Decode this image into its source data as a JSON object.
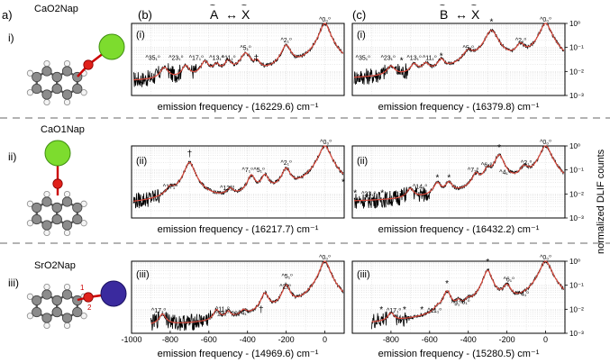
{
  "figure": {
    "labels": {
      "panel_a": "a)",
      "panel_b": "(b)",
      "panel_c": "(c)",
      "row_i": "i)",
      "row_ii": "ii)",
      "row_iii": "iii)",
      "sub_i": "(i)",
      "sub_ii": "(ii)",
      "sub_iii": "(iii)"
    },
    "transitions": {
      "b": {
        "upper": "A",
        "lower": "X",
        "arrow": "↔"
      },
      "c": {
        "upper": "B",
        "lower": "X",
        "arrow": "↔"
      }
    },
    "molecules": [
      {
        "name": "CaO2Nap",
        "metal_color": "#7ddc2e",
        "metal_edge": "#3f8f10"
      },
      {
        "name": "CaO1Nap",
        "metal_color": "#7ddc2e",
        "metal_edge": "#3f8f10"
      },
      {
        "name": "SrO2Nap",
        "metal_color": "#3a2a9e",
        "metal_edge": "#1a1060"
      }
    ],
    "sro2nap_site_labels": [
      "1",
      "2"
    ],
    "right_axis_label": "normalized DLIF counts",
    "colors": {
      "data": "#000000",
      "fit": "#d9483b",
      "grid": "#c8c8c8",
      "divider": "#999999"
    }
  },
  "chart_data": [
    {
      "id": "b-i",
      "type": "line",
      "xlim": [
        -1000,
        100
      ],
      "ylim": [
        0.001,
        1
      ],
      "yscale": "log",
      "xlabel": "emission frequency - (16229.6) cm⁻¹",
      "peaks": [
        {
          "x": 0,
          "h": 1.0,
          "w": 22
        },
        {
          "x": -200,
          "h": 0.11,
          "w": 22
        },
        {
          "x": -410,
          "h": 0.05,
          "w": 25
        },
        {
          "x": -500,
          "h": 0.02,
          "w": 18
        },
        {
          "x": -560,
          "h": 0.012,
          "w": 18
        },
        {
          "x": -620,
          "h": 0.02,
          "w": 20
        },
        {
          "x": -720,
          "h": 0.012,
          "w": 18
        },
        {
          "x": -830,
          "h": 0.01,
          "w": 20
        },
        {
          "x": -350,
          "h": 0.015,
          "w": 15
        }
      ],
      "baseline": 0.0035,
      "annotations": [
        {
          "x": 0,
          "y": 1.0,
          "text": "^0₀⁰"
        },
        {
          "x": -200,
          "y": 0.14,
          "text": "^2₁⁰"
        },
        {
          "x": -410,
          "y": 0.065,
          "text": "^5₁⁰"
        },
        {
          "x": -355,
          "y": 0.022,
          "text": "†"
        },
        {
          "x": -498,
          "y": 0.025,
          "text": "^11₁⁰"
        },
        {
          "x": -560,
          "y": 0.025,
          "text": "^13₁⁰"
        },
        {
          "x": -665,
          "y": 0.025,
          "text": "^17₁⁰"
        },
        {
          "x": -770,
          "y": 0.025,
          "text": "^23₁⁰"
        },
        {
          "x": -890,
          "y": 0.025,
          "text": "^35₁⁰"
        }
      ]
    },
    {
      "id": "c-i",
      "type": "line",
      "xlim": [
        -1000,
        100
      ],
      "ylim": [
        0.001,
        1
      ],
      "yscale": "log",
      "xlabel": "emission frequency - (16379.8) cm⁻¹",
      "peaks": [
        {
          "x": 0,
          "h": 1.0,
          "w": 25
        },
        {
          "x": -130,
          "h": 0.1,
          "w": 22
        },
        {
          "x": -280,
          "h": 0.5,
          "w": 28
        },
        {
          "x": -400,
          "h": 0.05,
          "w": 25
        },
        {
          "x": -540,
          "h": 0.02,
          "w": 18
        },
        {
          "x": -620,
          "h": 0.012,
          "w": 18
        },
        {
          "x": -680,
          "h": 0.012,
          "w": 18
        },
        {
          "x": -800,
          "h": 0.01,
          "w": 20
        }
      ],
      "baseline": 0.004,
      "annotations": [
        {
          "x": 0,
          "y": 1.0,
          "text": "^0₀⁰"
        },
        {
          "x": -128,
          "y": 0.14,
          "text": "^2₁⁰"
        },
        {
          "x": -280,
          "y": 0.75,
          "text": "*"
        },
        {
          "x": -400,
          "y": 0.065,
          "text": "^5₁⁰"
        },
        {
          "x": -540,
          "y": 0.028,
          "text": "*"
        },
        {
          "x": -600,
          "y": 0.025,
          "text": "^11₁⁰"
        },
        {
          "x": -680,
          "y": 0.025,
          "text": "^13₁⁰"
        },
        {
          "x": -745,
          "y": 0.018,
          "text": "*"
        },
        {
          "x": -815,
          "y": 0.025,
          "text": "^23₁⁰"
        },
        {
          "x": -945,
          "y": 0.025,
          "text": "^35₁⁰"
        }
      ]
    },
    {
      "id": "b-ii",
      "type": "line",
      "xlim": [
        -1000,
        100
      ],
      "ylim": [
        0.001,
        1
      ],
      "yscale": "log",
      "xlabel": "emission frequency - (16217.7) cm⁻¹",
      "peaks": [
        {
          "x": 0,
          "h": 1.0,
          "w": 25
        },
        {
          "x": -200,
          "h": 0.1,
          "w": 20
        },
        {
          "x": -310,
          "h": 0.05,
          "w": 18
        },
        {
          "x": -380,
          "h": 0.05,
          "w": 18
        },
        {
          "x": -700,
          "h": 0.2,
          "w": 22
        },
        {
          "x": -800,
          "h": 0.01,
          "w": 18
        },
        {
          "x": -490,
          "h": 0.008,
          "w": 18
        }
      ],
      "baseline": 0.003,
      "annotations": [
        {
          "x": 5,
          "y": 1.0,
          "text": "^0₀⁰"
        },
        {
          "x": -200,
          "y": 0.14,
          "text": "^2₁⁰"
        },
        {
          "x": -340,
          "y": 0.07,
          "text": "^5₁⁰"
        },
        {
          "x": -400,
          "y": 0.07,
          "text": "^7₁⁰"
        },
        {
          "x": -505,
          "y": 0.012,
          "text": "^12₁⁰"
        },
        {
          "x": -700,
          "y": 0.3,
          "text": "†"
        },
        {
          "x": -800,
          "y": 0.014,
          "text": "^17₁⁰"
        },
        {
          "x": 95,
          "y": 0.02,
          "text": "*"
        }
      ]
    },
    {
      "id": "c-ii",
      "type": "line",
      "xlim": [
        -1000,
        100
      ],
      "ylim": [
        0.001,
        1
      ],
      "yscale": "log",
      "xlabel": "emission frequency - (16432.2) cm⁻¹",
      "peaks": [
        {
          "x": 0,
          "h": 1.0,
          "w": 25
        },
        {
          "x": -110,
          "h": 0.1,
          "w": 22
        },
        {
          "x": -240,
          "h": 0.4,
          "w": 22
        },
        {
          "x": -300,
          "h": 0.08,
          "w": 18
        },
        {
          "x": -360,
          "h": 0.05,
          "w": 18
        },
        {
          "x": -500,
          "h": 0.02,
          "w": 18
        },
        {
          "x": -560,
          "h": 0.02,
          "w": 18
        },
        {
          "x": -700,
          "h": 0.01,
          "w": 18
        }
      ],
      "baseline": 0.004,
      "annotations": [
        {
          "x": 0,
          "y": 1.0,
          "text": "^0₀⁰"
        },
        {
          "x": -100,
          "y": 0.14,
          "text": "^2₁⁰"
        },
        {
          "x": -240,
          "y": 0.55,
          "text": "*"
        },
        {
          "x": -305,
          "y": 0.11,
          "text": "^6₁⁰"
        },
        {
          "x": -375,
          "y": 0.07,
          "text": "^7₁⁰"
        },
        {
          "x": -210,
          "y": 0.055,
          "text": "^4₁⁰"
        },
        {
          "x": -500,
          "y": 0.03,
          "text": "*"
        },
        {
          "x": -560,
          "y": 0.03,
          "text": "*"
        },
        {
          "x": -650,
          "y": 0.014,
          "text": "^14₁⁰"
        },
        {
          "x": -985,
          "y": 0.007,
          "text": "*"
        },
        {
          "x": -915,
          "y": 0.007,
          "text": "^23₁⁰"
        },
        {
          "x": -845,
          "y": 0.007,
          "text": "*"
        },
        {
          "x": -752,
          "y": 0.007,
          "text": "^17₁⁰"
        }
      ]
    },
    {
      "id": "b-iii",
      "type": "line",
      "xlim": [
        -1000,
        100
      ],
      "ylim": [
        0.001,
        1
      ],
      "yscale": "log",
      "xlabel": "emission frequency - (14969.6) cm⁻¹",
      "show_xticks": true,
      "xticks": [
        -1000,
        -800,
        -600,
        -400,
        -200,
        0
      ],
      "peaks": [
        {
          "x": 0,
          "h": 1.0,
          "w": 22
        },
        {
          "x": -200,
          "h": 0.09,
          "w": 18
        },
        {
          "x": -310,
          "h": 0.04,
          "w": 18
        },
        {
          "x": -420,
          "h": 0.004,
          "w": 18
        },
        {
          "x": -500,
          "h": 0.004,
          "w": 15
        },
        {
          "x": -560,
          "h": 0.006,
          "w": 15
        },
        {
          "x": -840,
          "h": 0.004,
          "w": 18
        }
      ],
      "baseline": 0.0015,
      "annotations": [
        {
          "x": 0,
          "y": 1.0,
          "text": "^0₀⁰"
        },
        {
          "x": -195,
          "y": 0.16,
          "text": "^5₁⁰"
        },
        {
          "x": -205,
          "y": 0.06,
          "text": "^2₂⁰"
        },
        {
          "x": -330,
          "y": 0.006,
          "text": "†"
        },
        {
          "x": -420,
          "y": 0.005,
          "text": "^4₁⁰"
        },
        {
          "x": -455,
          "y": 0.0045,
          "text": "^9₁⁰"
        },
        {
          "x": -530,
          "y": 0.007,
          "text": "^11₁⁰"
        },
        {
          "x": -535,
          "y": 0.0045,
          "text": "^12₁⁰"
        },
        {
          "x": -860,
          "y": 0.006,
          "text": "^17₁⁰"
        }
      ]
    },
    {
      "id": "c-iii",
      "type": "line",
      "xlim": [
        -1000,
        100
      ],
      "ylim": [
        0.001,
        1
      ],
      "yscale": "log",
      "xlabel": "emission frequency - (15280.5) cm⁻¹",
      "show_xticks": true,
      "xticks": [
        -800,
        -600,
        -400,
        -200,
        0
      ],
      "peaks": [
        {
          "x": 0,
          "h": 1.0,
          "w": 25
        },
        {
          "x": -200,
          "h": 0.08,
          "w": 20
        },
        {
          "x": -300,
          "h": 0.4,
          "w": 20
        },
        {
          "x": -400,
          "h": 0.01,
          "w": 15
        },
        {
          "x": -450,
          "h": 0.01,
          "w": 15
        },
        {
          "x": -510,
          "h": 0.05,
          "w": 18
        },
        {
          "x": -560,
          "h": 0.004,
          "w": 15
        },
        {
          "x": -800,
          "h": 0.004,
          "w": 15
        }
      ],
      "baseline": 0.0015,
      "annotations": [
        {
          "x": 0,
          "y": 1.0,
          "text": "^0₀⁰"
        },
        {
          "x": -190,
          "y": 0.12,
          "text": "^6₁⁰"
        },
        {
          "x": -115,
          "y": 0.03,
          "text": "^4₁⁰"
        },
        {
          "x": -300,
          "y": 0.6,
          "text": "*"
        },
        {
          "x": -510,
          "y": 0.075,
          "text": "*"
        },
        {
          "x": -420,
          "y": 0.014,
          "text": "^8₁⁰"
        },
        {
          "x": -460,
          "y": 0.012,
          "text": "^9₁⁰"
        },
        {
          "x": -575,
          "y": 0.006,
          "text": "^11₁⁰"
        },
        {
          "x": -640,
          "y": 0.006,
          "text": "*"
        },
        {
          "x": -730,
          "y": 0.006,
          "text": "*"
        },
        {
          "x": -785,
          "y": 0.006,
          "text": "^17₁⁰"
        },
        {
          "x": -850,
          "y": 0.006,
          "text": "*"
        }
      ]
    }
  ],
  "yticks_right": [
    "10⁰",
    "10⁻¹",
    "10⁻²",
    "10⁻³"
  ]
}
